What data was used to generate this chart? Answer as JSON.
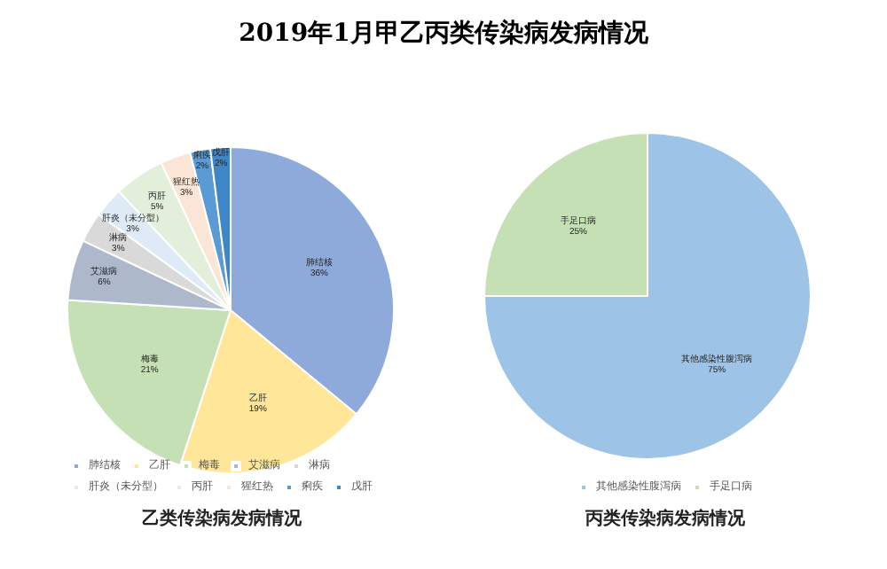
{
  "chart_data": [
    {
      "type": "pie",
      "annotations": [
        "2019年1月甲乙丙类传染病发病情况"
      ],
      "title": "乙类传染病发病情况",
      "categories": [
        "肺结核",
        "乙肝",
        "梅毒",
        "艾滋病",
        "淋病",
        "肝炎（未分型）",
        "丙肝",
        "猩红热",
        "痢疾",
        "戊肝"
      ],
      "values": [
        36,
        19,
        21,
        6,
        3,
        3,
        5,
        3,
        2,
        2
      ],
      "value_labels": [
        "36%",
        "19%",
        "21%",
        "6%",
        "3%",
        "3%",
        "5%",
        "3%",
        "2%",
        "2%"
      ],
      "colors": [
        "#8eaadb",
        "#ffe699",
        "#c5e0b4",
        "#adb9ca",
        "#d9d9d9",
        "#deebf7",
        "#e2efda",
        "#fbe5d6",
        "#5b9bd5",
        "#3f86c8"
      ],
      "legend": "bottom"
    },
    {
      "type": "pie",
      "title": "丙类传染病发病情况",
      "categories": [
        "其他感染性腹泻病",
        "手足口病"
      ],
      "values": [
        75,
        25
      ],
      "value_labels": [
        "75%",
        "25%"
      ],
      "colors": [
        "#9dc3e6",
        "#c5e0b4"
      ],
      "legend": "bottom"
    }
  ]
}
